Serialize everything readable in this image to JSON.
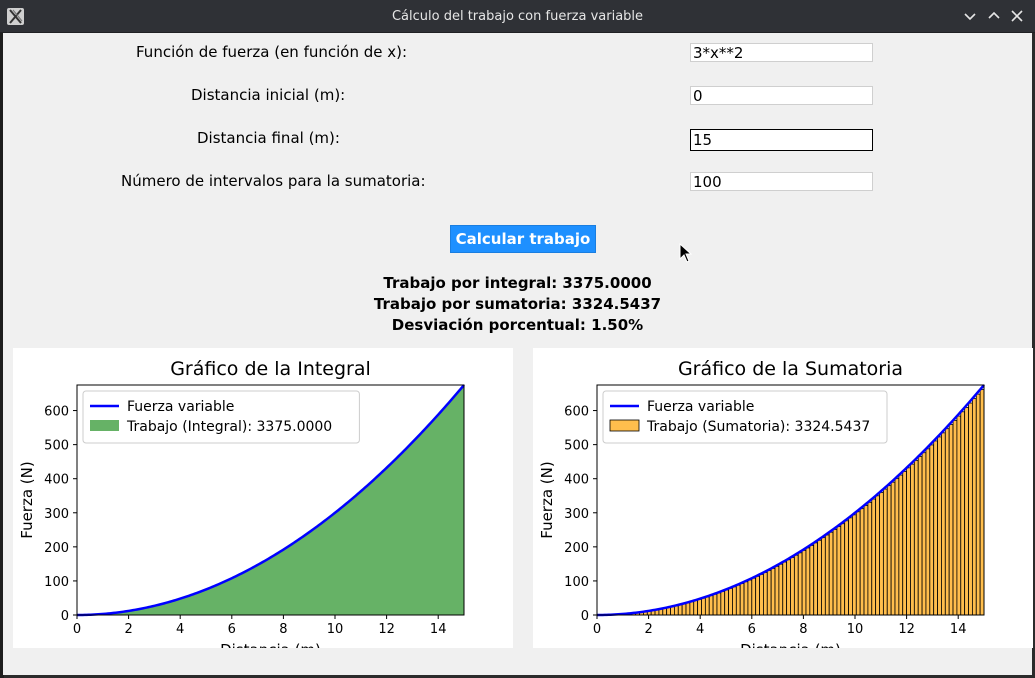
{
  "window": {
    "title": "Cálculo del trabajo con fuerza variable",
    "controls": [
      "minimize",
      "maximize",
      "close"
    ]
  },
  "form": {
    "force_label": "Función de fuerza (en función de x):",
    "force_value": "3*x**2",
    "start_label": "Distancia inicial (m):",
    "start_value": "0",
    "end_label": "Distancia final (m):",
    "end_value": "15",
    "intervals_label": "Número de intervalos para la sumatoria:",
    "intervals_value": "100",
    "calc_button": "Calcular trabajo"
  },
  "results": {
    "integral": "Trabajo por integral: 3375.0000",
    "sum": "Trabajo por sumatoria: 3324.5437",
    "deviation": "Desviación porcentual: 1.50%"
  },
  "chart_data": [
    {
      "type": "area",
      "title": "Gráfico de la Integral",
      "xlabel": "Distancia (m)",
      "ylabel": "Fuerza (N)",
      "xlim": [
        0,
        15
      ],
      "ylim": [
        0,
        675
      ],
      "xticks": [
        0,
        2,
        4,
        6,
        8,
        10,
        12,
        14
      ],
      "yticks": [
        0,
        100,
        200,
        300,
        400,
        500,
        600
      ],
      "legend_position": "top-left",
      "series": [
        {
          "name": "Fuerza variable",
          "kind": "line",
          "color": "#0000ff",
          "function": "3*x**2",
          "x": [
            0,
            15
          ]
        },
        {
          "name": "Trabajo (Integral): 3375.0000",
          "kind": "fill",
          "color": "#66b266",
          "function": "3*x**2",
          "x": [
            0,
            15
          ]
        }
      ]
    },
    {
      "type": "bar",
      "title": "Gráfico de la Sumatoria",
      "xlabel": "Distancia (m)",
      "ylabel": "Fuerza (N)",
      "xlim": [
        0,
        15
      ],
      "ylim": [
        0,
        675
      ],
      "xticks": [
        0,
        2,
        4,
        6,
        8,
        10,
        12,
        14
      ],
      "yticks": [
        0,
        100,
        200,
        300,
        400,
        500,
        600
      ],
      "legend_position": "top-left",
      "series": [
        {
          "name": "Fuerza variable",
          "kind": "line",
          "color": "#0000ff",
          "function": "3*x**2",
          "x": [
            0,
            15
          ]
        },
        {
          "name": "Trabajo (Sumatoria): 3324.5437",
          "kind": "bars",
          "color": "#ffbe4d",
          "edge": "#000000",
          "function": "3*x**2",
          "x": [
            0,
            15
          ],
          "intervals": 100,
          "rule": "left"
        }
      ]
    }
  ]
}
